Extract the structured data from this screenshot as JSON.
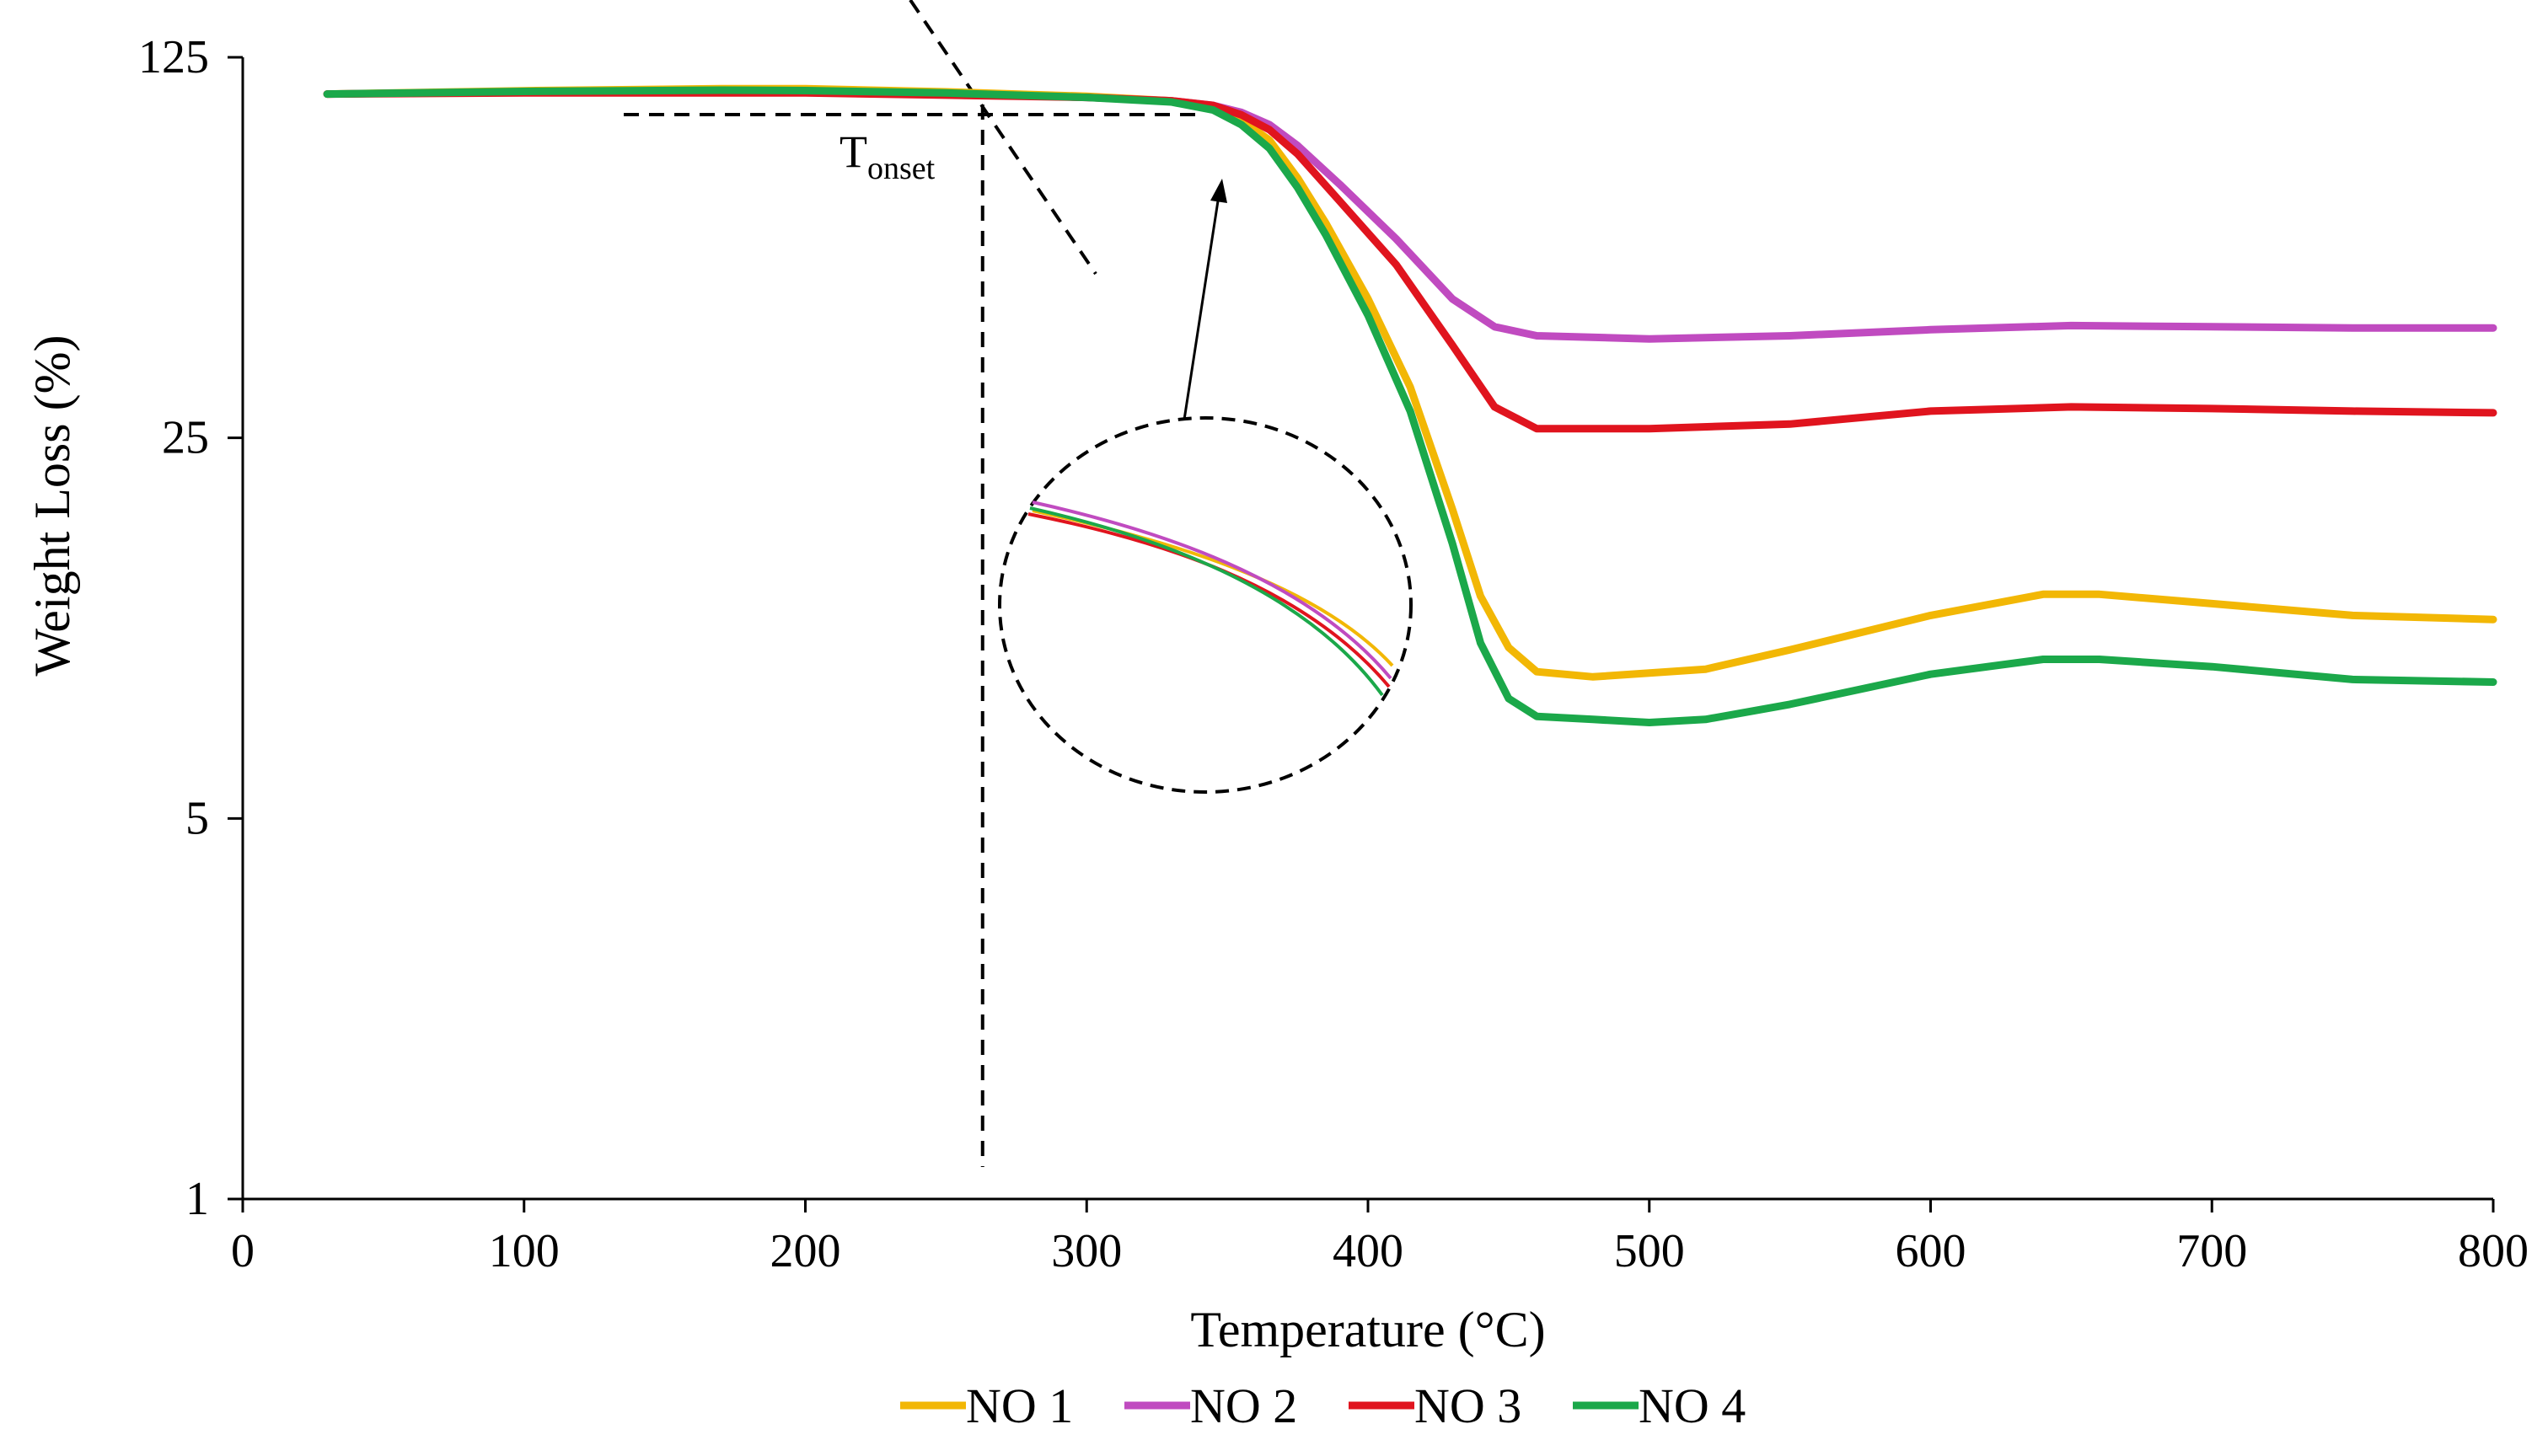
{
  "chart_data": {
    "type": "line",
    "xlabel": "Temperature (°C)",
    "ylabel": "Weight Loss (%)",
    "xlim": [
      0,
      800
    ],
    "ylim": [
      1,
      125
    ],
    "yscale": "log5",
    "x_ticks": [
      "0",
      "100",
      "200",
      "300",
      "400",
      "500",
      "600",
      "700",
      "800"
    ],
    "y_ticks": [
      "1",
      "5",
      "25",
      "125"
    ],
    "grid": false,
    "legend_position": "bottom-center",
    "annotation": {
      "main": "T",
      "sub": "onset",
      "x": 263,
      "y_top": 105
    },
    "series": [
      {
        "name": "NO 1",
        "color": "#F2B705",
        "points": [
          [
            30,
            107
          ],
          [
            100,
            108.5
          ],
          [
            170,
            109.5
          ],
          [
            200,
            109.5
          ],
          [
            250,
            108
          ],
          [
            300,
            106
          ],
          [
            330,
            104
          ],
          [
            345,
            101
          ],
          [
            355,
            96
          ],
          [
            365,
            88
          ],
          [
            375,
            75
          ],
          [
            385,
            62
          ],
          [
            400,
            45
          ],
          [
            415,
            31
          ],
          [
            430,
            18.5
          ],
          [
            440,
            12.8
          ],
          [
            450,
            10.3
          ],
          [
            460,
            9.3
          ],
          [
            480,
            9.1
          ],
          [
            520,
            9.4
          ],
          [
            550,
            10.2
          ],
          [
            600,
            11.8
          ],
          [
            640,
            12.9
          ],
          [
            660,
            12.9
          ],
          [
            700,
            12.4
          ],
          [
            750,
            11.8
          ],
          [
            800,
            11.6
          ]
        ]
      },
      {
        "name": "NO 2",
        "color": "#C04BC0",
        "points": [
          [
            30,
            107
          ],
          [
            100,
            108
          ],
          [
            170,
            108.5
          ],
          [
            200,
            108.5
          ],
          [
            250,
            107
          ],
          [
            300,
            105.5
          ],
          [
            330,
            104
          ],
          [
            345,
            102
          ],
          [
            355,
            99
          ],
          [
            365,
            94
          ],
          [
            375,
            86
          ],
          [
            390,
            73
          ],
          [
            410,
            58
          ],
          [
            430,
            45
          ],
          [
            445,
            40
          ],
          [
            460,
            38.5
          ],
          [
            500,
            38
          ],
          [
            550,
            38.5
          ],
          [
            600,
            39.5
          ],
          [
            650,
            40.2
          ],
          [
            700,
            40
          ],
          [
            750,
            39.8
          ],
          [
            800,
            39.8
          ]
        ]
      },
      {
        "name": "NO 3",
        "color": "#E0141E",
        "points": [
          [
            30,
            107
          ],
          [
            100,
            107.5
          ],
          [
            170,
            107.5
          ],
          [
            200,
            107.5
          ],
          [
            250,
            106.5
          ],
          [
            300,
            105.5
          ],
          [
            330,
            104
          ],
          [
            345,
            102
          ],
          [
            355,
            98
          ],
          [
            365,
            92
          ],
          [
            375,
            83
          ],
          [
            390,
            68
          ],
          [
            410,
            52
          ],
          [
            430,
            37
          ],
          [
            445,
            28.5
          ],
          [
            460,
            26
          ],
          [
            500,
            26
          ],
          [
            550,
            26.5
          ],
          [
            600,
            28
          ],
          [
            650,
            28.5
          ],
          [
            700,
            28.3
          ],
          [
            750,
            28
          ],
          [
            800,
            27.8
          ]
        ]
      },
      {
        "name": "NO 4",
        "color": "#1BA84A",
        "points": [
          [
            30,
            107
          ],
          [
            100,
            108.2
          ],
          [
            170,
            108.8
          ],
          [
            200,
            108.6
          ],
          [
            250,
            107.5
          ],
          [
            300,
            105.5
          ],
          [
            330,
            103.5
          ],
          [
            345,
            100
          ],
          [
            355,
            94
          ],
          [
            365,
            85
          ],
          [
            375,
            72
          ],
          [
            385,
            59
          ],
          [
            400,
            42
          ],
          [
            415,
            28
          ],
          [
            430,
            16
          ],
          [
            440,
            10.5
          ],
          [
            450,
            8.3
          ],
          [
            460,
            7.7
          ],
          [
            480,
            7.6
          ],
          [
            500,
            7.5
          ],
          [
            520,
            7.6
          ],
          [
            550,
            8.1
          ],
          [
            600,
            9.2
          ],
          [
            640,
            9.8
          ],
          [
            660,
            9.8
          ],
          [
            700,
            9.5
          ],
          [
            750,
            9
          ],
          [
            800,
            8.9
          ]
        ]
      }
    ]
  }
}
